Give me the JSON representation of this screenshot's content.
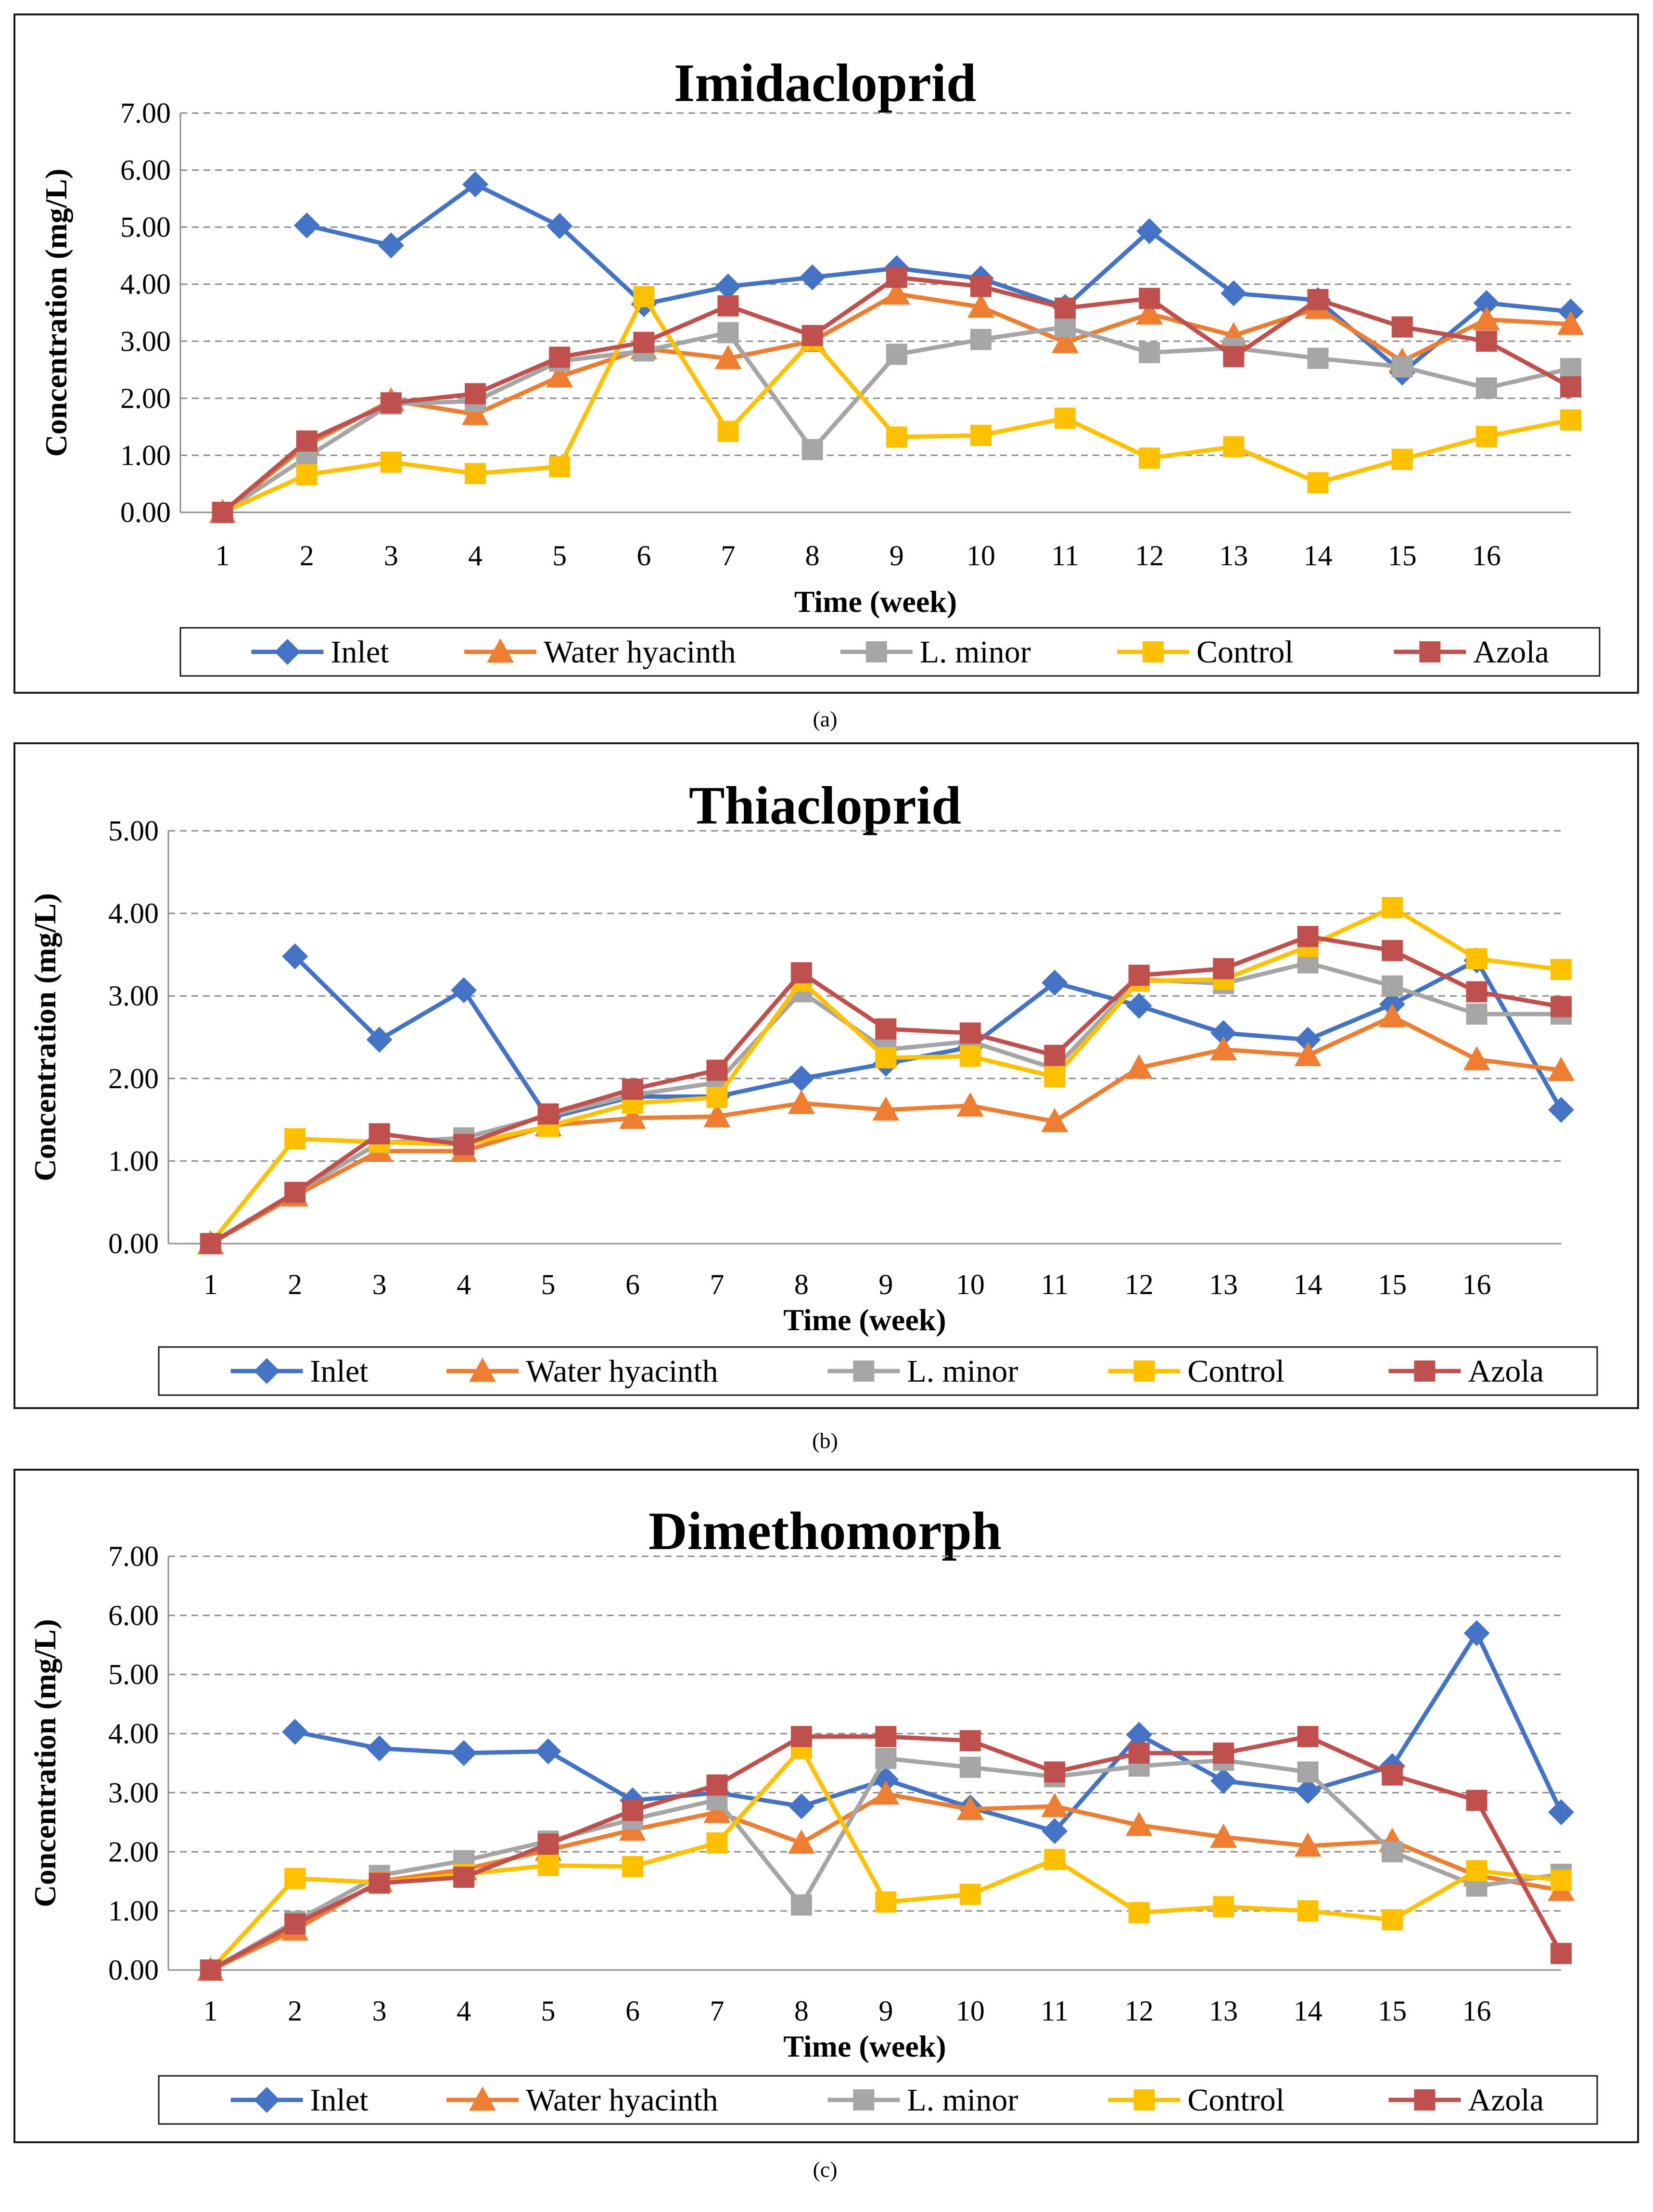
{
  "chart_data": [
    {
      "type": "line",
      "title": "Imidacloprid",
      "caption": "(a)",
      "xlabel": "Time (week)",
      "ylabel": "Concentration (mg/L)",
      "ylim": [
        0,
        7
      ],
      "yticks": [
        "0.00",
        "1.00",
        "2.00",
        "3.00",
        "4.00",
        "5.00",
        "6.00",
        "7.00"
      ],
      "categories": [
        "1",
        "2",
        "3",
        "4",
        "5",
        "6",
        "7",
        "8",
        "9",
        "10",
        "11",
        "12",
        "13",
        "14",
        "15",
        "16",
        ""
      ],
      "series": [
        {
          "name": "Inlet",
          "color": "#4472C4",
          "marker": "diamond",
          "values": [
            null,
            5.03,
            4.68,
            5.75,
            5.02,
            3.65,
            3.96,
            4.12,
            4.28,
            4.1,
            3.6,
            4.93,
            3.84,
            3.72,
            2.45,
            3.67,
            3.52
          ]
        },
        {
          "name": "Water hyacinth",
          "color": "#ED7D31",
          "marker": "triangle",
          "values": [
            0,
            1.18,
            1.96,
            1.72,
            2.38,
            2.87,
            2.7,
            3.0,
            3.83,
            3.6,
            2.98,
            3.48,
            3.1,
            3.58,
            2.65,
            3.38,
            3.3
          ]
        },
        {
          "name": "L. minor",
          "color": "#A5A5A5",
          "marker": "square",
          "values": [
            0,
            0.97,
            1.9,
            1.95,
            2.65,
            2.83,
            3.15,
            1.1,
            2.77,
            3.03,
            3.25,
            2.8,
            2.88,
            2.7,
            2.55,
            2.18,
            2.52
          ]
        },
        {
          "name": "Control",
          "color": "#FFC000",
          "marker": "square",
          "values": [
            0,
            0.66,
            0.88,
            0.68,
            0.8,
            3.78,
            1.42,
            3.02,
            1.32,
            1.35,
            1.65,
            0.95,
            1.15,
            0.52,
            0.93,
            1.33,
            1.62
          ]
        },
        {
          "name": "Azola",
          "color": "#C0504D",
          "marker": "square",
          "values": [
            0,
            1.25,
            1.92,
            2.08,
            2.72,
            2.98,
            3.62,
            3.1,
            4.12,
            3.96,
            3.58,
            3.75,
            2.73,
            3.73,
            3.25,
            3.0,
            2.2
          ]
        }
      ]
    },
    {
      "type": "line",
      "title": "Thiacloprid",
      "caption": "(b)",
      "xlabel": "Time (week)",
      "ylabel": "Concentration (mg/L)",
      "ylim": [
        0,
        5
      ],
      "yticks": [
        "0.00",
        "1.00",
        "2.00",
        "3.00",
        "4.00",
        "5.00"
      ],
      "categories": [
        "1",
        "2",
        "3",
        "4",
        "5",
        "6",
        "7",
        "8",
        "9",
        "10",
        "11",
        "12",
        "13",
        "14",
        "15",
        "16",
        ""
      ],
      "series": [
        {
          "name": "Inlet",
          "color": "#4472C4",
          "marker": "diamond",
          "values": [
            null,
            3.48,
            2.47,
            3.07,
            1.52,
            1.78,
            1.78,
            2.0,
            2.18,
            2.38,
            3.16,
            2.88,
            2.55,
            2.47,
            2.9,
            3.43,
            1.62
          ]
        },
        {
          "name": "Water hyacinth",
          "color": "#ED7D31",
          "marker": "triangle",
          "values": [
            0,
            0.58,
            1.12,
            1.12,
            1.43,
            1.52,
            1.54,
            1.7,
            1.62,
            1.67,
            1.48,
            2.13,
            2.35,
            2.28,
            2.75,
            2.23,
            2.1
          ]
        },
        {
          "name": "L. minor",
          "color": "#A5A5A5",
          "marker": "square",
          "values": [
            0,
            0.62,
            1.22,
            1.28,
            1.55,
            1.8,
            1.95,
            3.05,
            2.35,
            2.45,
            2.12,
            3.2,
            3.15,
            3.4,
            3.12,
            2.78,
            2.78
          ]
        },
        {
          "name": "Control",
          "color": "#FFC000",
          "marker": "square",
          "values": [
            0,
            1.27,
            1.23,
            1.2,
            1.42,
            1.7,
            1.77,
            3.18,
            2.25,
            2.27,
            2.02,
            3.18,
            3.2,
            3.6,
            4.07,
            3.45,
            3.32
          ]
        },
        {
          "name": "Azola",
          "color": "#C0504D",
          "marker": "square",
          "values": [
            0,
            0.62,
            1.33,
            1.2,
            1.57,
            1.87,
            2.1,
            3.28,
            2.6,
            2.55,
            2.28,
            3.25,
            3.33,
            3.72,
            3.55,
            3.05,
            2.87
          ]
        }
      ]
    },
    {
      "type": "line",
      "title": "Dimethomorph",
      "caption": "(c)",
      "xlabel": "Time (week)",
      "ylabel": "Concentration (mg/L)",
      "ylim": [
        0,
        7
      ],
      "yticks": [
        "0.00",
        "1.00",
        "2.00",
        "3.00",
        "4.00",
        "5.00",
        "6.00",
        "7.00"
      ],
      "categories": [
        "1",
        "2",
        "3",
        "4",
        "5",
        "6",
        "7",
        "8",
        "9",
        "10",
        "11",
        "12",
        "13",
        "14",
        "15",
        "16",
        ""
      ],
      "series": [
        {
          "name": "Inlet",
          "color": "#4472C4",
          "marker": "diamond",
          "values": [
            null,
            4.03,
            3.75,
            3.67,
            3.7,
            2.87,
            3.0,
            2.77,
            3.22,
            2.75,
            2.35,
            3.98,
            3.2,
            3.03,
            3.45,
            5.7,
            2.67
          ]
        },
        {
          "name": "Water hyacinth",
          "color": "#ED7D31",
          "marker": "triangle",
          "values": [
            0,
            0.68,
            1.5,
            1.7,
            2.03,
            2.37,
            2.67,
            2.15,
            2.98,
            2.72,
            2.77,
            2.45,
            2.25,
            2.1,
            2.18,
            1.6,
            1.35
          ]
        },
        {
          "name": "L. minor",
          "color": "#A5A5A5",
          "marker": "square",
          "values": [
            0,
            0.82,
            1.6,
            1.85,
            2.18,
            2.55,
            2.88,
            1.1,
            3.58,
            3.43,
            3.27,
            3.45,
            3.55,
            3.35,
            2.0,
            1.42,
            1.62
          ]
        },
        {
          "name": "Control",
          "color": "#FFC000",
          "marker": "square",
          "values": [
            0,
            1.55,
            1.48,
            1.62,
            1.77,
            1.75,
            2.15,
            3.75,
            1.15,
            1.28,
            1.87,
            0.97,
            1.07,
            1.0,
            0.85,
            1.68,
            1.52
          ]
        },
        {
          "name": "Azola",
          "color": "#C0504D",
          "marker": "square",
          "values": [
            0,
            0.78,
            1.47,
            1.57,
            2.13,
            2.7,
            3.13,
            3.95,
            3.95,
            3.88,
            3.35,
            3.67,
            3.67,
            3.95,
            3.3,
            2.87,
            0.28
          ]
        }
      ]
    }
  ]
}
